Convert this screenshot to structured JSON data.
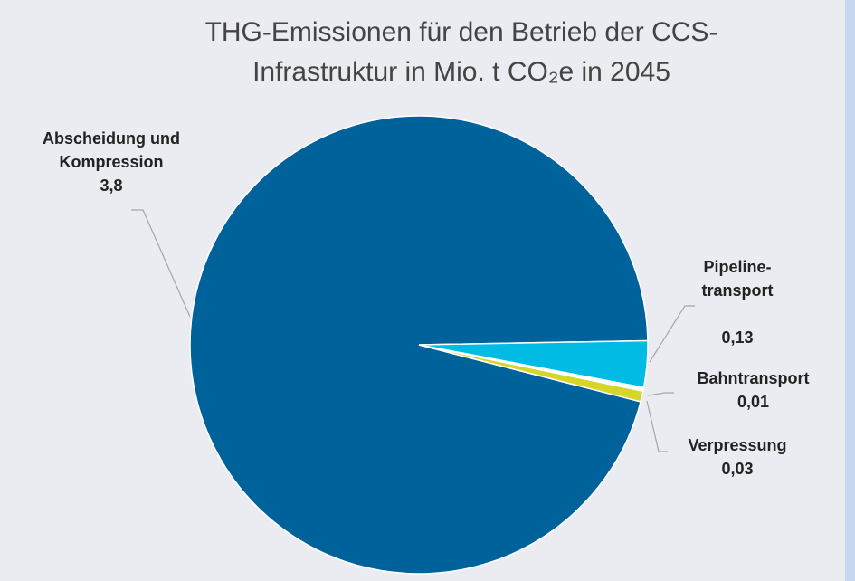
{
  "chart_data": {
    "type": "pie",
    "title": "THG-Emissionen für den Betrieb der CCS-Infrastruktur in Mio. t CO₂e in 2045",
    "categories": [
      "Abscheidung und Kompression",
      "Pipeline-transport",
      "Bahntransport",
      "Verpressung"
    ],
    "values": [
      3.8,
      0.13,
      0.01,
      0.03
    ],
    "value_labels": [
      "3,8",
      "0,13",
      "0,01",
      "0,03"
    ],
    "colors": [
      "#00629b",
      "#00bce4",
      "#ffffff",
      "#d4d628"
    ]
  }
}
